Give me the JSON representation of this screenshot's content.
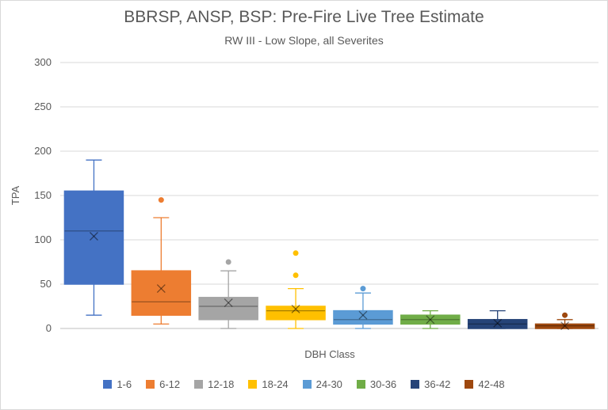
{
  "chart_data": {
    "type": "box",
    "title": "BBRSP, ANSP, BSP: Pre-Fire Live Tree Estimate",
    "subtitle": "RW III - Low Slope, all Severites",
    "xlabel": "DBH Class",
    "ylabel": "TPA",
    "ylim": [
      0,
      300
    ],
    "yticks": [
      0,
      50,
      100,
      150,
      200,
      250,
      300
    ],
    "grid": true,
    "legend_position": "bottom",
    "series": [
      {
        "name": "1-6",
        "color": "#4472C4",
        "min": 15,
        "q1": 50,
        "median": 110,
        "mean": 104,
        "q3": 155,
        "max": 190,
        "outliers": []
      },
      {
        "name": "6-12",
        "color": "#ED7D31",
        "min": 5,
        "q1": 15,
        "median": 30,
        "mean": 45,
        "q3": 65,
        "max": 125,
        "outliers": [
          145
        ]
      },
      {
        "name": "12-18",
        "color": "#A5A5A5",
        "min": 0,
        "q1": 10,
        "median": 25,
        "mean": 29,
        "q3": 35,
        "max": 65,
        "outliers": [
          75
        ]
      },
      {
        "name": "18-24",
        "color": "#FFC000",
        "min": 0,
        "q1": 10,
        "median": 20,
        "mean": 22,
        "q3": 25,
        "max": 45,
        "outliers": [
          60,
          85
        ]
      },
      {
        "name": "24-30",
        "color": "#5B9BD5",
        "min": 0,
        "q1": 5,
        "median": 10,
        "mean": 15,
        "q3": 20,
        "max": 40,
        "outliers": [
          45
        ]
      },
      {
        "name": "30-36",
        "color": "#70AD47",
        "min": 0,
        "q1": 5,
        "median": 10,
        "mean": 10,
        "q3": 15,
        "max": 20,
        "outliers": []
      },
      {
        "name": "36-42",
        "color": "#264478",
        "min": 0,
        "q1": 0,
        "median": 5,
        "mean": 6,
        "q3": 10,
        "max": 20,
        "outliers": []
      },
      {
        "name": "42-48",
        "color": "#9E480E",
        "min": 0,
        "q1": 0,
        "median": 3,
        "mean": 3,
        "q3": 5,
        "max": 10,
        "outliers": [
          15
        ]
      }
    ]
  }
}
